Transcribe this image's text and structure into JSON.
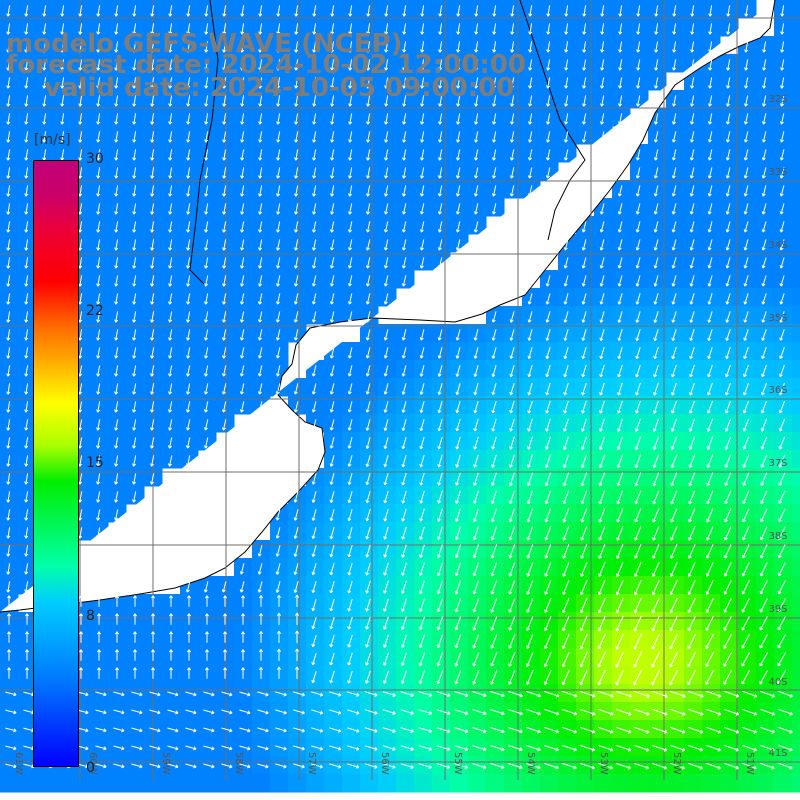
{
  "title": {
    "line1": "modelo GEFS-WAVE (NCEP)",
    "line2": "forecast date: 2024-10-02 12:00:00",
    "line3": "valid date: 2024-10-05 09:00:00"
  },
  "colorbar": {
    "unit": "[m/s]",
    "ticks": [
      "30",
      "22",
      "15",
      "8",
      "0"
    ],
    "tick_values": [
      30,
      22,
      15,
      8,
      0
    ],
    "range": [
      0,
      30
    ]
  },
  "grid": {
    "lat_labels": [
      "32S",
      "33S",
      "34S",
      "35S",
      "36S",
      "37S",
      "38S",
      "39S",
      "40S",
      "41S"
    ],
    "lon_labels": [
      "61W",
      "60W",
      "59W",
      "58W",
      "57W",
      "56W",
      "55W",
      "54W",
      "53W",
      "52W",
      "51W"
    ]
  },
  "colors": {
    "title": "#7d7d7d",
    "land": "#ffffff",
    "coast": "#000000",
    "grid": "#6e6e6e",
    "arrows": "#ffffff"
  },
  "wind_field": {
    "predominant_direction": "from north-northwest",
    "max_speed_region": "southeast",
    "max_speed": 16
  }
}
